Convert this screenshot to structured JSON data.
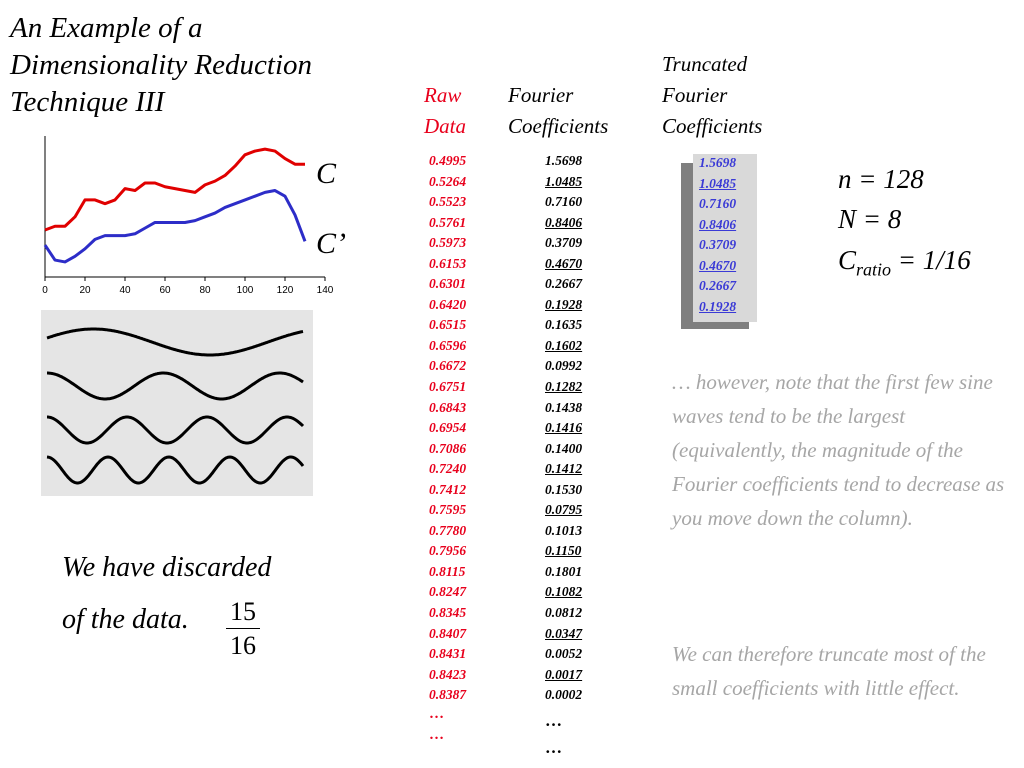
{
  "slide": {
    "title_line1": "An Example of a",
    "title_line2": "Dimensionality Reduction",
    "title_line3": "Technique III"
  },
  "headers": {
    "raw_line1": "Raw",
    "raw_line2": "Data",
    "fourier_line1": "Fourier",
    "fourier_line2": "Coefficients",
    "trunc_line1": "Truncated",
    "trunc_line2": "Fourier",
    "trunc_line3": "Coefficients"
  },
  "raw_data": [
    "0.4995",
    "0.5264",
    "0.5523",
    "0.5761",
    "0.5973",
    "0.6153",
    "0.6301",
    "0.6420",
    "0.6515",
    "0.6596",
    "0.6672",
    "0.6751",
    "0.6843",
    "0.6954",
    "0.7086",
    "0.7240",
    "0.7412",
    "0.7595",
    "0.7780",
    "0.7956",
    "0.8115",
    "0.8247",
    "0.8345",
    "0.8407",
    "0.8431",
    "0.8423",
    "0.8387"
  ],
  "fourier_coefficients": [
    "1.5698",
    "1.0485",
    "0.7160",
    "0.8406",
    "0.3709",
    "0.4670",
    "0.2667",
    "0.1928",
    "0.1635",
    "0.1602",
    "0.0992",
    "0.1282",
    "0.1438",
    "0.1416",
    "0.1400",
    "0.1412",
    "0.1530",
    "0.0795",
    "0.1013",
    "0.1150",
    "0.1801",
    "0.1082",
    "0.0812",
    "0.0347",
    "0.0052",
    "0.0017",
    "0.0002"
  ],
  "truncated_coefficients": [
    "1.5698",
    "1.0485",
    "0.7160",
    "0.8406",
    "0.3709",
    "0.4670",
    "0.2667",
    "0.1928"
  ],
  "ellipsis": "…",
  "params": {
    "n": "n = 128",
    "N": "N = 8",
    "c_main": "C",
    "c_sub": "ratio",
    "c_value": " = 1/16"
  },
  "notes": {
    "note1": "… however, note that the first few sine waves tend to be the largest (equivalently, the magnitude of the Fourier coefficients tend to decrease as you move down the column).",
    "note2": "We can therefore truncate most of the small coefficients with little effect."
  },
  "discard": {
    "line1": "We have discarded",
    "line2": "of the data.",
    "numerator": "15",
    "denominator": "16"
  },
  "chart_data": {
    "type": "line",
    "x_ticks": [
      "0",
      "20",
      "40",
      "60",
      "80",
      "100",
      "120",
      "140"
    ],
    "xlim": [
      0,
      140
    ],
    "series": [
      {
        "name": "C",
        "color": "#e00000",
        "x": [
          0,
          5,
          10,
          15,
          20,
          25,
          30,
          35,
          40,
          45,
          50,
          55,
          60,
          65,
          70,
          75,
          80,
          85,
          90,
          95,
          100,
          105,
          110,
          115,
          120,
          125,
          130
        ],
        "y": [
          0.5,
          0.52,
          0.52,
          0.57,
          0.66,
          0.66,
          0.64,
          0.66,
          0.72,
          0.71,
          0.75,
          0.75,
          0.73,
          0.72,
          0.71,
          0.7,
          0.74,
          0.76,
          0.79,
          0.84,
          0.9,
          0.92,
          0.93,
          0.92,
          0.88,
          0.85,
          0.85
        ]
      },
      {
        "name": "C’",
        "color": "#2d2dc8",
        "x": [
          0,
          5,
          10,
          15,
          20,
          25,
          30,
          35,
          40,
          45,
          50,
          55,
          60,
          65,
          70,
          75,
          80,
          85,
          90,
          95,
          100,
          105,
          110,
          115,
          120,
          125,
          130
        ],
        "y": [
          0.42,
          0.34,
          0.33,
          0.36,
          0.4,
          0.45,
          0.47,
          0.47,
          0.47,
          0.48,
          0.51,
          0.54,
          0.54,
          0.54,
          0.54,
          0.55,
          0.57,
          0.59,
          0.62,
          0.64,
          0.66,
          0.68,
          0.7,
          0.71,
          0.68,
          0.58,
          0.44
        ]
      }
    ]
  },
  "sine_waves": [
    {
      "cycles": 1.1,
      "phase": 0.3
    },
    {
      "cycles": 2.2,
      "phase": 0.0
    },
    {
      "cycles": 3.2,
      "phase": 0.0
    },
    {
      "cycles": 4.2,
      "phase": 0.0
    }
  ]
}
